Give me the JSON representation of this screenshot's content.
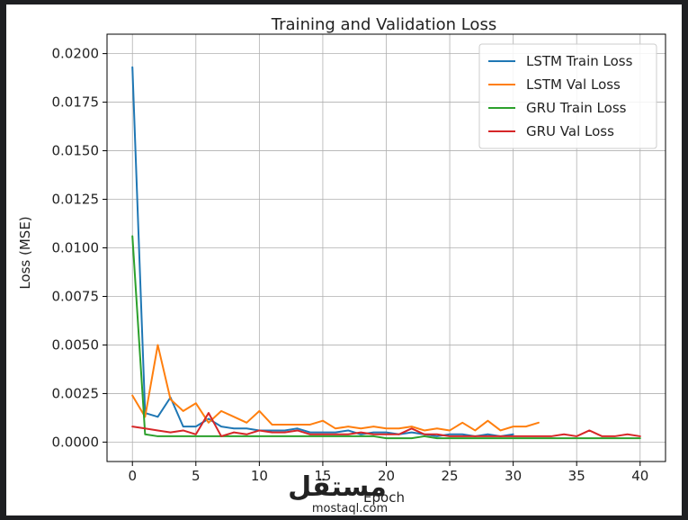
{
  "chart_data": {
    "type": "line",
    "title": "Training and Validation Loss",
    "xlabel": "Epoch",
    "ylabel": "Loss (MSE)",
    "xlim": [
      -2,
      42
    ],
    "ylim": [
      -0.001,
      0.021
    ],
    "xticks": [
      0,
      5,
      10,
      15,
      20,
      25,
      30,
      35,
      40
    ],
    "yticks": [
      0.0,
      0.0025,
      0.005,
      0.0075,
      0.01,
      0.0125,
      0.015,
      0.0175,
      0.02
    ],
    "ytick_labels": [
      "0.0000",
      "0.0025",
      "0.0050",
      "0.0075",
      "0.0100",
      "0.0125",
      "0.0150",
      "0.0175",
      "0.0200"
    ],
    "grid": true,
    "legend": "top-right",
    "series": [
      {
        "name": "LSTM Train Loss",
        "color": "#1f77b4",
        "x": [
          0,
          1,
          2,
          3,
          4,
          5,
          6,
          7,
          8,
          9,
          10,
          11,
          12,
          13,
          14,
          15,
          16,
          17,
          18,
          19,
          20,
          21,
          22,
          23,
          24,
          25,
          26,
          27,
          28,
          29,
          30
        ],
        "values": [
          0.0193,
          0.0015,
          0.0013,
          0.0023,
          0.0008,
          0.0008,
          0.0012,
          0.0008,
          0.0007,
          0.0007,
          0.0006,
          0.0006,
          0.0006,
          0.0007,
          0.0005,
          0.0005,
          0.0005,
          0.0006,
          0.0004,
          0.0005,
          0.0005,
          0.0004,
          0.0005,
          0.0004,
          0.0003,
          0.0004,
          0.0004,
          0.0003,
          0.0004,
          0.0003,
          0.0004
        ]
      },
      {
        "name": "LSTM Val Loss",
        "color": "#ff7f0e",
        "x": [
          0,
          1,
          2,
          3,
          4,
          5,
          6,
          7,
          8,
          9,
          10,
          11,
          12,
          13,
          14,
          15,
          16,
          17,
          18,
          19,
          20,
          21,
          22,
          23,
          24,
          25,
          26,
          27,
          28,
          29,
          30,
          31,
          32
        ],
        "values": [
          0.0024,
          0.0013,
          0.005,
          0.0022,
          0.0016,
          0.002,
          0.001,
          0.0016,
          0.0013,
          0.001,
          0.0016,
          0.0009,
          0.0009,
          0.0009,
          0.0009,
          0.0011,
          0.0007,
          0.0008,
          0.0007,
          0.0008,
          0.0007,
          0.0007,
          0.0008,
          0.0006,
          0.0007,
          0.0006,
          0.001,
          0.0006,
          0.0011,
          0.0006,
          0.0008,
          0.0008,
          0.001
        ]
      },
      {
        "name": "GRU Train Loss",
        "color": "#2ca02c",
        "x": [
          0,
          1,
          2,
          3,
          4,
          5,
          6,
          7,
          8,
          9,
          10,
          11,
          12,
          13,
          14,
          15,
          16,
          17,
          18,
          19,
          20,
          21,
          22,
          23,
          24,
          25,
          26,
          27,
          28,
          29,
          30,
          31,
          32,
          33,
          34,
          35,
          36,
          37,
          38,
          39,
          40
        ],
        "values": [
          0.0106,
          0.0004,
          0.0003,
          0.0003,
          0.0003,
          0.0003,
          0.0003,
          0.0003,
          0.0003,
          0.0003,
          0.0003,
          0.0003,
          0.0003,
          0.0003,
          0.0003,
          0.0003,
          0.0003,
          0.0003,
          0.0003,
          0.0003,
          0.0002,
          0.0002,
          0.0002,
          0.0003,
          0.0002,
          0.0002,
          0.0002,
          0.0002,
          0.0002,
          0.0002,
          0.0002,
          0.0002,
          0.0002,
          0.0002,
          0.0002,
          0.0002,
          0.0002,
          0.0002,
          0.0002,
          0.0002,
          0.0002
        ]
      },
      {
        "name": "GRU Val Loss",
        "color": "#d62728",
        "x": [
          0,
          1,
          2,
          3,
          4,
          5,
          6,
          7,
          8,
          9,
          10,
          11,
          12,
          13,
          14,
          15,
          16,
          17,
          18,
          19,
          20,
          21,
          22,
          23,
          24,
          25,
          26,
          27,
          28,
          29,
          30,
          31,
          32,
          33,
          34,
          35,
          36,
          37,
          38,
          39,
          40
        ],
        "values": [
          0.0008,
          0.0007,
          0.0006,
          0.0005,
          0.0006,
          0.0004,
          0.0015,
          0.0003,
          0.0005,
          0.0004,
          0.0006,
          0.0005,
          0.0005,
          0.0006,
          0.0004,
          0.0004,
          0.0004,
          0.0004,
          0.0005,
          0.0004,
          0.0004,
          0.0004,
          0.0007,
          0.0004,
          0.0004,
          0.0003,
          0.0003,
          0.0003,
          0.0003,
          0.0003,
          0.0003,
          0.0003,
          0.0003,
          0.0003,
          0.0004,
          0.0003,
          0.0006,
          0.0003,
          0.0003,
          0.0004,
          0.0003
        ]
      }
    ]
  },
  "watermark": {
    "arabic": "مستقل",
    "latin": "mostaql.com"
  }
}
